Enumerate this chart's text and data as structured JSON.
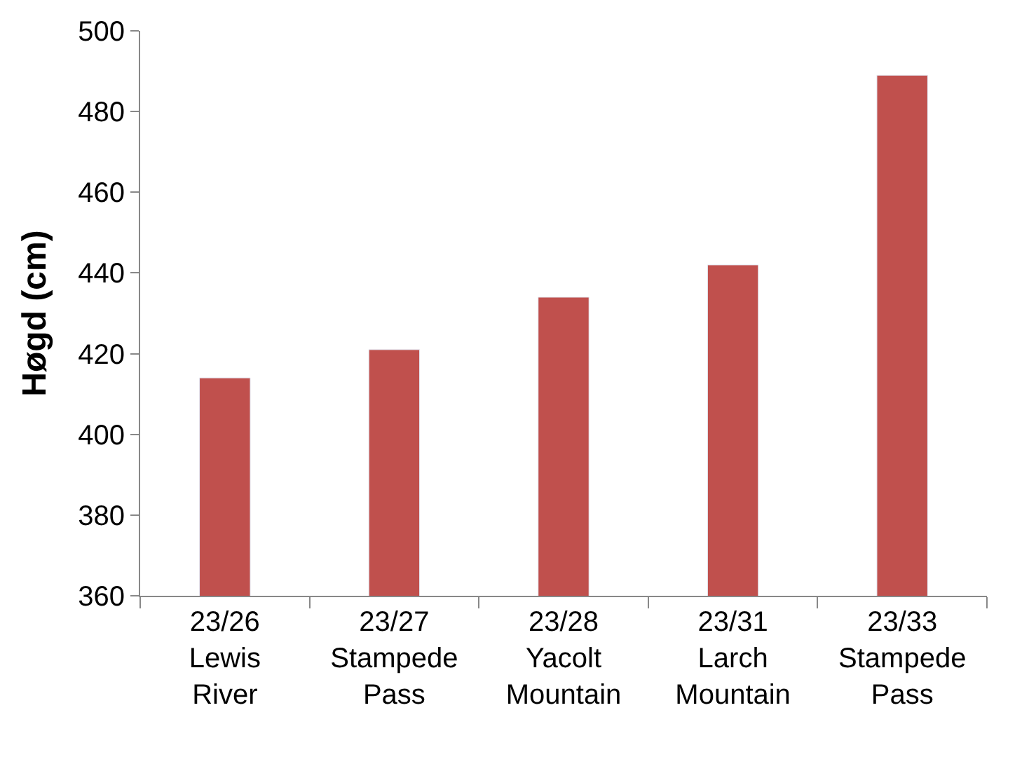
{
  "chart_data": {
    "type": "bar",
    "ylabel": "Høgd (cm)",
    "categories": [
      "23/26\nLewis\nRiver",
      "23/27\nStampede\nPass",
      "23/28\nYacolt\nMountain",
      "23/31\nLarch\nMountain",
      "23/33\nStampede\nPass"
    ],
    "values": [
      414,
      421,
      434,
      442,
      489
    ],
    "color": "#c0504d",
    "ylim": [
      360,
      500
    ],
    "yticks": [
      360,
      380,
      400,
      420,
      440,
      460,
      480,
      500
    ],
    "legend": false
  }
}
